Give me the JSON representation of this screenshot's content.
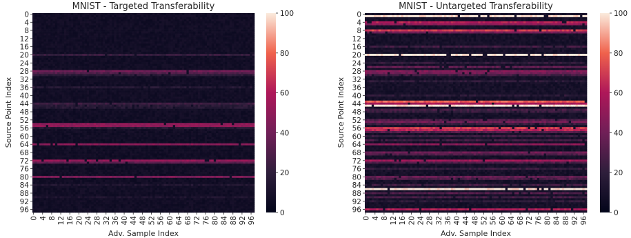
{
  "chart_data": [
    {
      "type": "heatmap",
      "title": "MNIST - Targeted Transferability",
      "xlabel": "Adv. Sample Index",
      "ylabel": "Source Point Index",
      "rows": 98,
      "cols": 98,
      "x_ticks": [
        "0",
        "4",
        "8",
        "12",
        "16",
        "20",
        "24",
        "28",
        "32",
        "36",
        "40",
        "44",
        "48",
        "52",
        "56",
        "60",
        "64",
        "68",
        "72",
        "76",
        "80",
        "84",
        "88",
        "92",
        "96"
      ],
      "y_ticks": [
        "0",
        "4",
        "8",
        "12",
        "16",
        "20",
        "24",
        "28",
        "32",
        "36",
        "40",
        "44",
        "48",
        "52",
        "56",
        "60",
        "64",
        "68",
        "72",
        "76",
        "80",
        "84",
        "88",
        "92",
        "96"
      ],
      "colorbar": {
        "min": 0,
        "max": 100,
        "ticks": [
          "0",
          "20",
          "40",
          "60",
          "80",
          "100"
        ]
      },
      "base_value": 7,
      "noise_range": 6,
      "row_bands": [
        {
          "row": 20,
          "value": 22
        },
        {
          "row": 28,
          "value": 40
        },
        {
          "row": 29,
          "value": 30
        },
        {
          "row": 30,
          "value": 18
        },
        {
          "row": 36,
          "value": 16
        },
        {
          "row": 44,
          "value": 24
        },
        {
          "row": 45,
          "value": 18
        },
        {
          "row": 46,
          "value": 16
        },
        {
          "row": 54,
          "value": 50
        },
        {
          "row": 55,
          "value": 50
        },
        {
          "row": 56,
          "value": 14
        },
        {
          "row": 64,
          "value": 48
        },
        {
          "row": 72,
          "value": 52
        },
        {
          "row": 73,
          "value": 34
        },
        {
          "row": 80,
          "value": 44
        },
        {
          "row": 84,
          "value": 14
        },
        {
          "row": 90,
          "value": 12
        }
      ]
    },
    {
      "type": "heatmap",
      "title": "MNIST - Untargeted Transferability",
      "xlabel": "Adv. Sample Index",
      "ylabel": "Source Point Index",
      "rows": 98,
      "cols": 98,
      "x_ticks": [
        "0",
        "4",
        "8",
        "12",
        "16",
        "20",
        "24",
        "28",
        "32",
        "36",
        "40",
        "44",
        "48",
        "52",
        "56",
        "60",
        "64",
        "68",
        "72",
        "76",
        "80",
        "84",
        "88",
        "92",
        "96"
      ],
      "y_ticks": [
        "0",
        "4",
        "8",
        "12",
        "16",
        "20",
        "24",
        "28",
        "32",
        "36",
        "40",
        "44",
        "48",
        "52",
        "56",
        "60",
        "64",
        "68",
        "72",
        "76",
        "80",
        "84",
        "88",
        "92",
        "96"
      ],
      "colorbar": {
        "min": 0,
        "max": 100,
        "ticks": [
          "0",
          "20",
          "40",
          "60",
          "80",
          "100"
        ]
      },
      "base_value": 9,
      "noise_range": 8,
      "row_bands": [
        {
          "row": 1,
          "value": 100
        },
        {
          "row": 4,
          "value": 62
        },
        {
          "row": 5,
          "value": 48
        },
        {
          "row": 8,
          "value": 70
        },
        {
          "row": 9,
          "value": 40
        },
        {
          "row": 16,
          "value": 26
        },
        {
          "row": 20,
          "value": 100
        },
        {
          "row": 24,
          "value": 20
        },
        {
          "row": 26,
          "value": 36
        },
        {
          "row": 28,
          "value": 46
        },
        {
          "row": 29,
          "value": 40
        },
        {
          "row": 30,
          "value": 24
        },
        {
          "row": 33,
          "value": 18
        },
        {
          "row": 40,
          "value": 18
        },
        {
          "row": 43,
          "value": 78
        },
        {
          "row": 44,
          "value": 56
        },
        {
          "row": 45,
          "value": 100
        },
        {
          "row": 47,
          "value": 26
        },
        {
          "row": 48,
          "value": 22
        },
        {
          "row": 52,
          "value": 30
        },
        {
          "row": 53,
          "value": 40
        },
        {
          "row": 54,
          "value": 22
        },
        {
          "row": 56,
          "value": 70
        },
        {
          "row": 57,
          "value": 62
        },
        {
          "row": 58,
          "value": 30
        },
        {
          "row": 60,
          "value": 24
        },
        {
          "row": 62,
          "value": 26
        },
        {
          "row": 64,
          "value": 48
        },
        {
          "row": 68,
          "value": 40
        },
        {
          "row": 69,
          "value": 30
        },
        {
          "row": 72,
          "value": 56
        },
        {
          "row": 73,
          "value": 30
        },
        {
          "row": 76,
          "value": 22
        },
        {
          "row": 80,
          "value": 36
        },
        {
          "row": 81,
          "value": 30
        },
        {
          "row": 84,
          "value": 26
        },
        {
          "row": 86,
          "value": 100
        },
        {
          "row": 88,
          "value": 30
        },
        {
          "row": 90,
          "value": 26
        },
        {
          "row": 92,
          "value": 18
        },
        {
          "row": 96,
          "value": 60
        }
      ]
    }
  ]
}
